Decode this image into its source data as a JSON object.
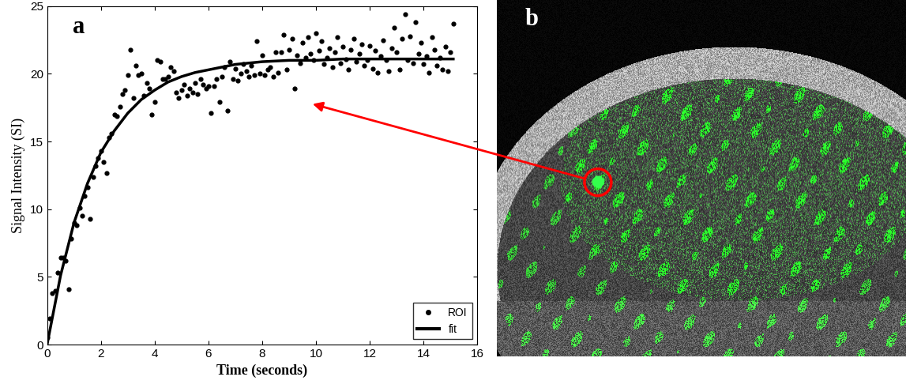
{
  "chart_data": {
    "type": "scatter",
    "annotations": [
      "a"
    ],
    "xlabel": "Time (seconds)",
    "ylabel": "Signal Intensity (SI)",
    "xlim": [
      0,
      16
    ],
    "xticks": [
      0,
      2,
      4,
      6,
      8,
      10,
      12,
      14,
      16
    ],
    "ylim": [
      0,
      25
    ],
    "yticks": [
      0,
      5,
      10,
      15,
      20,
      25
    ],
    "legend": "lower right",
    "series": [
      {
        "name": "ROI",
        "type": "scatter",
        "color": "#000000",
        "marker": "o",
        "x": [
          0.0,
          0.1,
          0.2,
          0.3,
          0.4,
          0.5,
          0.6,
          0.7,
          0.8,
          0.9,
          1.0,
          1.1,
          1.2,
          1.3,
          1.4,
          1.5,
          1.6,
          1.7,
          1.8,
          1.9,
          2.0,
          2.1,
          2.2,
          2.3,
          2.4,
          2.5,
          2.6,
          2.7,
          2.8,
          2.9,
          3.0,
          3.1,
          3.2,
          3.3,
          3.4,
          3.5,
          3.6,
          3.7,
          3.8,
          3.9,
          4.0,
          4.1,
          4.2,
          4.3,
          4.4,
          4.5,
          4.6,
          4.7,
          4.8,
          4.9,
          5.0,
          5.1,
          5.2,
          5.3,
          5.4,
          5.5,
          5.6,
          5.7,
          5.8,
          5.9,
          6.0,
          6.1,
          6.2,
          6.3,
          6.4,
          6.5,
          6.6,
          6.7,
          6.8,
          6.9,
          7.0,
          7.1,
          7.2,
          7.3,
          7.4,
          7.5,
          7.6,
          7.7,
          7.8,
          7.9,
          8.0,
          8.1,
          8.2,
          8.3,
          8.4,
          8.5,
          8.6,
          8.7,
          8.8,
          8.9,
          9.0,
          9.1,
          9.2,
          9.3,
          9.4,
          9.5,
          9.6,
          9.7,
          9.8,
          9.9,
          10.0,
          10.1,
          10.2,
          10.3,
          10.4,
          10.5,
          10.6,
          10.7,
          10.8,
          10.9,
          11.0,
          11.1,
          11.2,
          11.3,
          11.4,
          11.5,
          11.6,
          11.7,
          11.8,
          11.9,
          12.0,
          12.1,
          12.2,
          12.3,
          12.4,
          12.5,
          12.6,
          12.7,
          12.8,
          12.9,
          13.0,
          13.1,
          13.2,
          13.3,
          13.4,
          13.5,
          13.6,
          13.7,
          13.8,
          13.9,
          14.0,
          14.1,
          14.2,
          14.3,
          14.4,
          14.5,
          14.6,
          14.7,
          14.8,
          14.9,
          15.0,
          15.1
        ],
        "values": [
          0.5,
          1.9,
          3.8,
          4.0,
          5.3,
          6.4,
          6.4,
          6.2,
          4.1,
          7.8,
          9.0,
          8.8,
          10.1,
          9.5,
          11.0,
          11.6,
          9.3,
          12.4,
          13.2,
          13.8,
          14.3,
          13.5,
          12.7,
          15.3,
          15.6,
          17.0,
          16.9,
          17.6,
          18.5,
          18.8,
          19.9,
          21.8,
          18.2,
          20.6,
          19.9,
          20.0,
          18.4,
          19.3,
          18.9,
          17.0,
          17.9,
          21.0,
          20.9,
          19.6,
          19.6,
          19.8,
          20.5,
          20.2,
          18.6,
          18.2,
          18.8,
          19.2,
          18.4,
          18.9,
          18.6,
          19.3,
          18.5,
          19.6,
          19.2,
          18.9,
          19.1,
          17.1,
          19.1,
          19.6,
          17.9,
          19.8,
          20.5,
          17.3,
          20.9,
          19.6,
          20.4,
          19.5,
          20.0,
          20.7,
          20.2,
          19.8,
          20.6,
          19.9,
          22.4,
          20.0,
          21.4,
          19.9,
          20.3,
          20.5,
          19.8,
          21.6,
          20.1,
          21.6,
          22.9,
          20.3,
          21.8,
          22.6,
          18.9,
          21.4,
          20.8,
          22.3,
          21.2,
          22.7,
          21.5,
          21.0,
          23.0,
          21.7,
          22.4,
          20.7,
          21.2,
          21.9,
          20.5,
          21.6,
          22.7,
          20.8,
          22.0,
          21.1,
          20.3,
          21.8,
          22.6,
          20.9,
          21.5,
          22.2,
          20.6,
          21.0,
          22.1,
          20.4,
          21.7,
          20.1,
          21.3,
          22.5,
          21.0,
          20.2,
          21.9,
          23.4,
          21.6,
          20.3,
          22.6,
          24.4,
          21.0,
          22.8,
          20.8,
          23.8,
          21.5,
          22.3,
          20.7,
          21.3,
          20.1,
          22.7,
          21.8,
          20.6,
          21.2,
          20.3,
          22.0,
          20.2,
          21.6,
          23.7
        ]
      },
      {
        "name": "fit",
        "type": "line",
        "color": "#000000",
        "line_style": "solid",
        "x": [
          0.0,
          0.5,
          1.0,
          1.5,
          2.0,
          2.5,
          3.0,
          3.5,
          4.0,
          4.5,
          5.0,
          5.5,
          6.0,
          6.5,
          7.0,
          7.5,
          8.0,
          9.0,
          10.0,
          11.0,
          12.0,
          13.0,
          14.0,
          15.1
        ],
        "values": [
          0.0,
          5.1,
          9.0,
          11.9,
          14.2,
          15.8,
          17.1,
          18.1,
          18.8,
          19.4,
          19.8,
          20.1,
          20.3,
          20.5,
          20.7,
          20.8,
          20.9,
          21.0,
          21.0,
          21.1,
          21.1,
          21.1,
          21.1,
          21.1
        ]
      }
    ]
  },
  "image": {
    "label": "b"
  }
}
